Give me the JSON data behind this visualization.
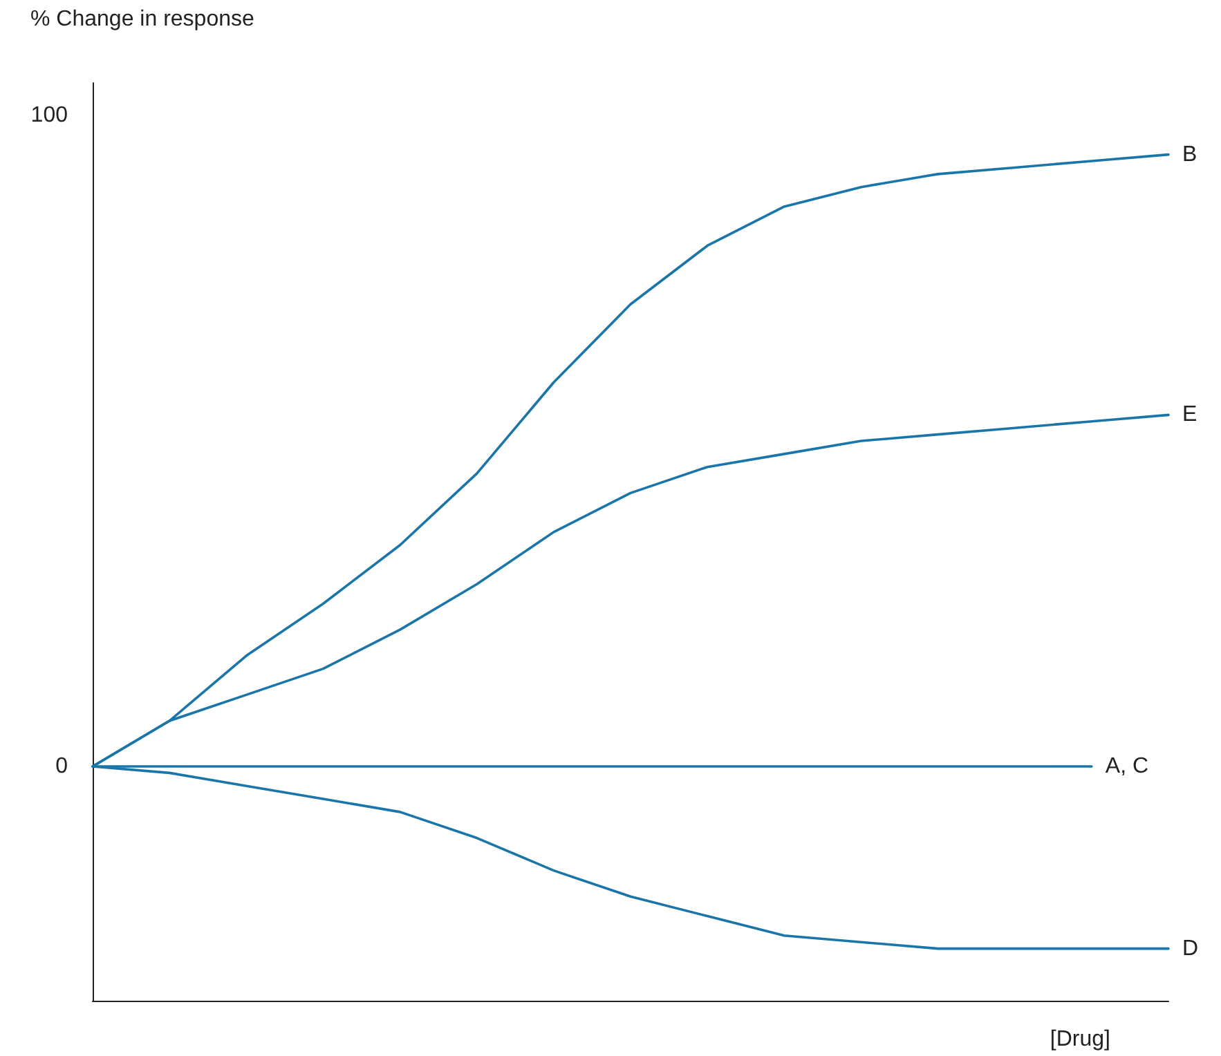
{
  "chart_data": {
    "type": "line",
    "ylabel": "% Change in response",
    "xlabel": "[Drug]",
    "categories": [
      null,
      null,
      null,
      null,
      null,
      null,
      null,
      null,
      null,
      null,
      null,
      null,
      null,
      null,
      null
    ],
    "series": [
      {
        "name": "B",
        "color": "#1a75a8",
        "values": [
          0,
          7,
          17,
          25,
          34,
          45,
          59,
          71,
          80,
          86,
          89,
          91,
          92,
          93,
          94
        ]
      },
      {
        "name": "E",
        "color": "#1a75a8",
        "values": [
          0,
          7,
          11,
          15,
          21,
          28,
          36,
          42,
          46,
          48,
          50,
          51,
          52,
          53,
          54
        ]
      },
      {
        "name": "A, C",
        "color": "#1a75a8",
        "values": [
          0,
          0,
          0,
          0,
          0,
          0,
          0,
          0,
          0,
          0,
          0,
          0,
          0,
          0,
          null
        ]
      },
      {
        "name": "D",
        "color": "#1a75a8",
        "values": [
          0,
          -1,
          -3,
          -5,
          -7,
          -11,
          -16,
          -20,
          -23,
          -26,
          -27,
          -28,
          -28,
          -28,
          -28
        ]
      }
    ],
    "ylim": [
      -36,
      105
    ],
    "yticks": [
      0,
      100
    ],
    "tick_labels": "y"
  }
}
